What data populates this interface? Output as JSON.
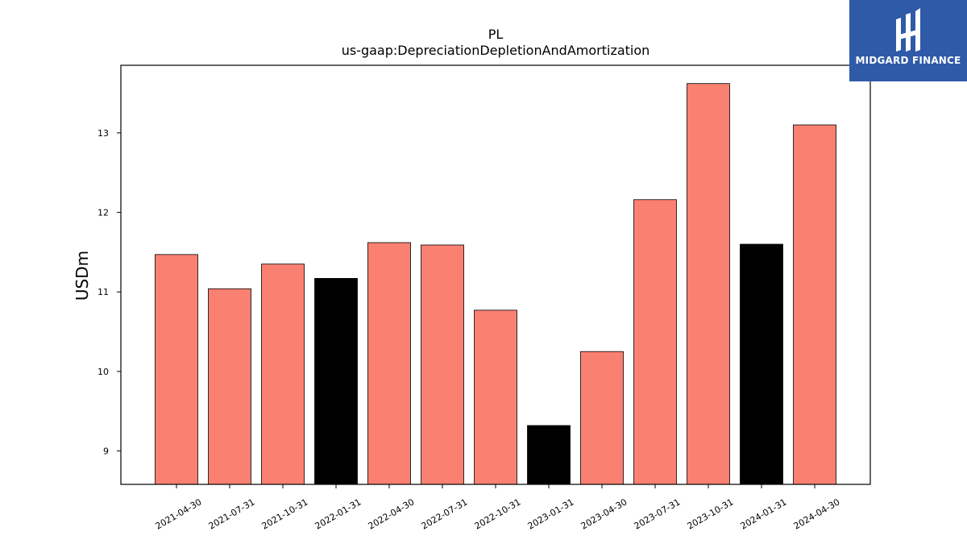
{
  "chart_data": {
    "type": "bar",
    "title": "PL",
    "subtitle": "us-gaap:DepreciationDepletionAndAmortization",
    "xlabel": "",
    "ylabel": "USDm",
    "ylim": [
      8.58,
      13.85
    ],
    "yticks": [
      9,
      10,
      11,
      12,
      13
    ],
    "grid": false,
    "categories": [
      "2021-04-30",
      "2021-07-31",
      "2021-10-31",
      "2022-01-31",
      "2022-04-30",
      "2022-07-31",
      "2022-10-31",
      "2023-01-31",
      "2023-04-30",
      "2023-07-31",
      "2023-10-31",
      "2024-01-31",
      "2024-04-30"
    ],
    "values": [
      11.47,
      11.04,
      11.35,
      11.17,
      11.62,
      11.59,
      10.77,
      9.32,
      10.25,
      12.16,
      13.62,
      11.6,
      13.1
    ],
    "bar_colors": [
      "#fa8072",
      "#fa8072",
      "#fa8072",
      "#000000",
      "#fa8072",
      "#fa8072",
      "#fa8072",
      "#000000",
      "#fa8072",
      "#fa8072",
      "#fa8072",
      "#000000",
      "#fa8072"
    ]
  },
  "logo": {
    "text": "MIDGARD FINANCE",
    "background": "#2f5aa8"
  }
}
